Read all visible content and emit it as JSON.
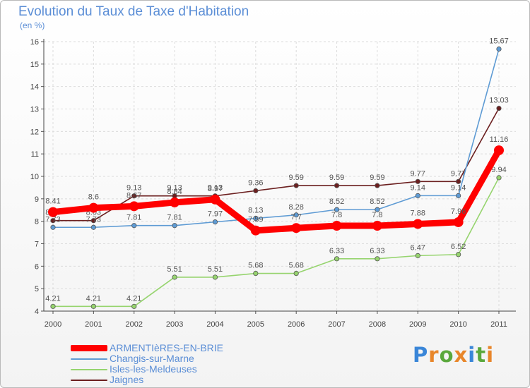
{
  "title": "Evolution du Taux de Taxe d'Habitation",
  "unit_label": "(en %)",
  "brand": {
    "text": "Proxiti",
    "letters": [
      {
        "ch": "P",
        "color": "#3a86d8"
      },
      {
        "ch": "r",
        "color": "#e8862a"
      },
      {
        "ch": "o",
        "color": "#5aa83c"
      },
      {
        "ch": "x",
        "color": "#e8862a"
      },
      {
        "ch": "i",
        "color": "#3a86d8"
      },
      {
        "ch": "t",
        "color": "#5aa83c"
      },
      {
        "ch": "i",
        "color": "#e8862a"
      }
    ]
  },
  "chart_data": {
    "type": "line",
    "title": "Evolution du Taux de Taxe d'Habitation",
    "ylabel": "(en %)",
    "xlabel": "",
    "x": [
      "2000",
      "2001",
      "2002",
      "2003",
      "2004",
      "2005",
      "2006",
      "2007",
      "2008",
      "2009",
      "2010",
      "2011"
    ],
    "ylim": [
      4,
      16
    ],
    "yticks": [
      "4",
      "5",
      "6",
      "7",
      "8",
      "9",
      "10",
      "11",
      "12",
      "13",
      "14",
      "15",
      "16"
    ],
    "grid": true,
    "legend_position": "bottom-left",
    "series": [
      {
        "name": "Jaignes",
        "color": "#6b1f1f",
        "values": [
          8.03,
          8.03,
          9.13,
          9.13,
          9.13,
          9.36,
          9.59,
          9.59,
          9.59,
          9.77,
          9.77,
          13.03
        ],
        "labels": [
          "8.03",
          "8.03",
          "9.13",
          "9.13",
          "9.13",
          "9.36",
          "9.59",
          "9.59",
          "9.59",
          "9.77",
          "9.77",
          "13.03"
        ]
      },
      {
        "name": "Isles-les-Meldeuses",
        "color": "#96d46e",
        "values": [
          4.21,
          4.21,
          4.21,
          5.51,
          5.51,
          5.68,
          5.68,
          6.33,
          6.33,
          6.47,
          6.52,
          9.94
        ],
        "labels": [
          "4.21",
          "4.21",
          "4.21",
          "5.51",
          "5.51",
          "5.68",
          "5.68",
          "6.33",
          "6.33",
          "6.47",
          "6.52",
          "9.94"
        ]
      },
      {
        "name": "Changis-sur-Marne",
        "color": "#5e9bd4",
        "values": [
          7.73,
          7.73,
          7.81,
          7.81,
          7.97,
          8.13,
          8.28,
          8.52,
          8.52,
          9.14,
          9.14,
          15.67
        ],
        "labels": [
          "7.73",
          "7.73",
          "7.81",
          "7.81",
          "7.97",
          "8.13",
          "8.28",
          "8.52",
          "8.52",
          "9.14",
          "9.14",
          "15.67"
        ]
      },
      {
        "name": "ARMENTIèRES-EN-BRIE",
        "color": "#ff0000",
        "values": [
          8.41,
          8.6,
          8.67,
          8.84,
          8.97,
          7.59,
          7.7,
          7.8,
          7.8,
          7.88,
          7.96,
          11.16
        ],
        "labels": [
          "8.41",
          "8.6",
          "8.67",
          "8.84",
          "8.97",
          "7.59",
          "7.7",
          "7.8",
          "7.8",
          "7.88",
          "7.96",
          "11.16"
        ]
      }
    ],
    "legend": [
      "ARMENTIèRES-EN-BRIE",
      "Changis-sur-Marne",
      "Isles-les-Meldeuses",
      "Jaignes"
    ]
  }
}
